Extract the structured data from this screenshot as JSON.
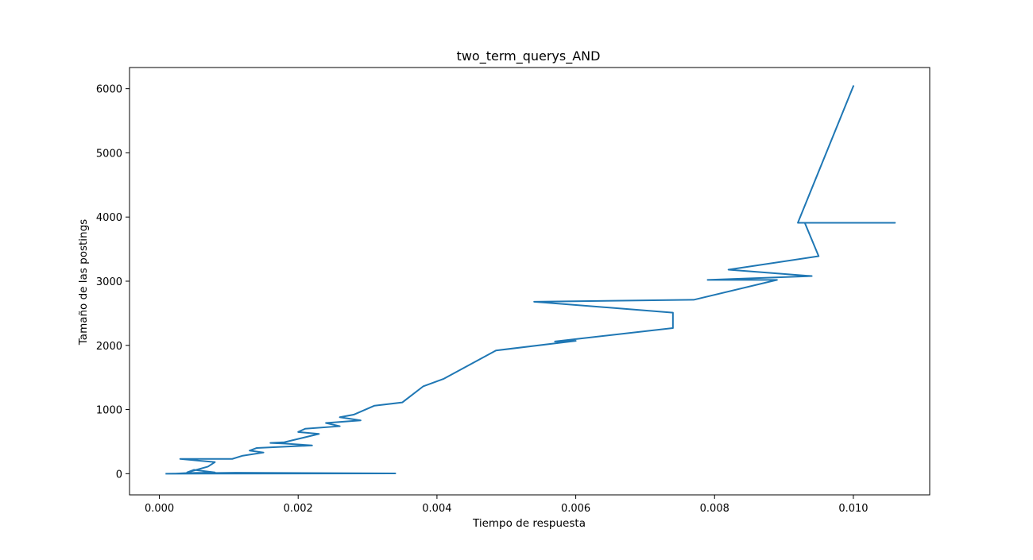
{
  "chart_data": {
    "type": "line",
    "title": "two_term_querys_AND",
    "xlabel": "Tiempo de respuesta",
    "ylabel": "Tamaño de las postings",
    "xlim": [
      -0.00043,
      0.0111
    ],
    "ylim": [
      -330,
      6330
    ],
    "xticks": [
      0.0,
      0.002,
      0.004,
      0.006,
      0.008,
      0.01
    ],
    "xtick_labels": [
      "0.000",
      "0.002",
      "0.004",
      "0.006",
      "0.008",
      "0.010"
    ],
    "yticks": [
      0,
      1000,
      2000,
      3000,
      4000,
      5000,
      6000
    ],
    "ytick_labels": [
      "0",
      "1000",
      "2000",
      "3000",
      "4000",
      "5000",
      "6000"
    ],
    "grid": false,
    "line_color": "#1f77b4",
    "series": [
      {
        "x": [
          0.0001,
          0.0009,
          0.0003,
          0.0011,
          0.0034,
          0.0002,
          0.0004,
          0.0008,
          0.0005,
          0.0004,
          0.0007,
          0.0008,
          0.0003,
          0.00105,
          0.0012,
          0.0015,
          0.0013,
          0.0014,
          0.0022,
          0.0018,
          0.0016,
          0.0018,
          0.0023,
          0.002,
          0.0021,
          0.0026,
          0.0024,
          0.0029,
          0.0026,
          0.0028,
          0.0031,
          0.0035,
          0.0038,
          0.0041,
          0.00485,
          0.006,
          0.0057,
          0.0074,
          0.0074,
          0.0054,
          0.0077,
          0.0089,
          0.0079,
          0.0094,
          0.0082,
          0.0095,
          0.0093,
          0.0092,
          0.0106,
          0.0092,
          0.01
        ],
        "y": [
          0,
          10,
          5,
          15,
          5,
          0,
          10,
          20,
          60,
          20,
          110,
          180,
          230,
          230,
          280,
          330,
          360,
          400,
          440,
          470,
          480,
          490,
          620,
          650,
          700,
          740,
          790,
          830,
          880,
          920,
          1060,
          1110,
          1360,
          1480,
          1920,
          2070,
          2060,
          2270,
          2510,
          2680,
          2710,
          3020,
          3020,
          3080,
          3180,
          3390,
          3910,
          3910,
          3910,
          3910,
          6040
        ]
      }
    ]
  }
}
